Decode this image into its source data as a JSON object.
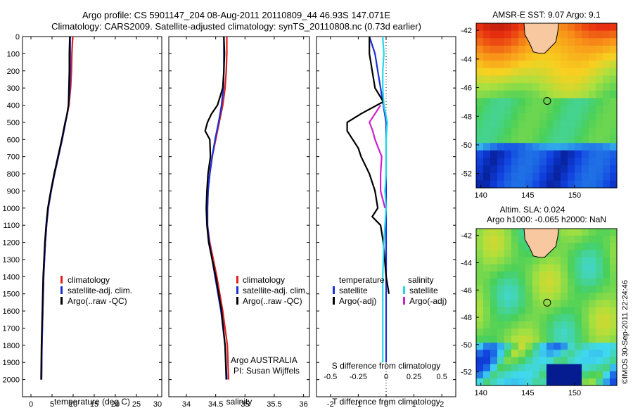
{
  "header": {
    "line1": "Argo profile: CS 5901147_204 08-Aug-2011 20110809_44 46.93S 147.071E",
    "line2": "Climatology: CARS2009. Satellite-adjusted climatology: synTS_20110808.nc (0.73d earlier)"
  },
  "credit": "©IMOS 30-Sep-2011 22:24:46",
  "colors": {
    "climatology": "#e02020",
    "satellite": "#1a2fd6",
    "argo": "#000000",
    "sal_satellite": "#22d8e8",
    "sal_argo": "#cc22cc"
  },
  "chart_data": [
    {
      "type": "line",
      "id": "temperature",
      "xlabel": "temperature (deg C)",
      "xlim": [
        -2,
        31
      ],
      "xticks": [
        0,
        5,
        10,
        15,
        20,
        25,
        30
      ],
      "ylim": [
        0,
        2100
      ],
      "yticks": [
        0,
        100,
        200,
        300,
        400,
        500,
        600,
        700,
        800,
        900,
        1000,
        1100,
        1200,
        1300,
        1400,
        1500,
        1600,
        1700,
        1800,
        1900,
        2000
      ],
      "legend": [
        "climatology",
        "satellite-adj. clim.",
        "Argo(..raw -QC)"
      ],
      "series": [
        {
          "name": "climatology",
          "color": "#e02020",
          "depth": [
            0,
            100,
            200,
            300,
            400,
            500,
            600,
            700,
            800,
            900,
            1000,
            1100,
            1200,
            1400,
            1600,
            1800,
            2000
          ],
          "values": [
            9.9,
            9.7,
            9.6,
            9.4,
            9.0,
            8.2,
            7.4,
            6.5,
            5.6,
            4.8,
            4.1,
            3.7,
            3.4,
            3.0,
            2.8,
            2.6,
            2.5
          ]
        },
        {
          "name": "satellite-adj. clim.",
          "color": "#1a2fd6",
          "depth": [
            0,
            100,
            200,
            300,
            400,
            500,
            600,
            700,
            800,
            900,
            1000,
            1100,
            1200,
            1400,
            1600,
            1800,
            2000
          ],
          "values": [
            9.3,
            9.3,
            9.3,
            9.2,
            8.9,
            8.2,
            7.4,
            6.5,
            5.6,
            4.8,
            4.1,
            3.7,
            3.4,
            3.0,
            2.8,
            2.6,
            2.5
          ]
        },
        {
          "name": "Argo(..raw -QC)",
          "color": "#000000",
          "depth": [
            0,
            100,
            200,
            300,
            400,
            450,
            500,
            600,
            700,
            800,
            900,
            1000,
            1100,
            1200,
            1400,
            1600,
            1800,
            2000
          ],
          "values": [
            9.2,
            9.1,
            9.1,
            9.0,
            8.9,
            8.6,
            8.1,
            7.3,
            6.4,
            5.5,
            4.7,
            4.0,
            3.6,
            3.3,
            2.9,
            2.7,
            2.5,
            2.4
          ]
        }
      ]
    },
    {
      "type": "line",
      "id": "salinity",
      "xlabel": "salinity",
      "xlim": [
        33.7,
        36.1
      ],
      "xticks": [
        34,
        34.5,
        35,
        35.5,
        36
      ],
      "ylim": [
        0,
        2100
      ],
      "legend": [
        "climatology",
        "satellite-adj. clim.",
        "Argo(..raw -QC)"
      ],
      "annotation": [
        "Argo AUSTRALIA",
        "PI: Susan Wijffels"
      ],
      "series": [
        {
          "name": "climatology",
          "color": "#e02020",
          "depth": [
            0,
            100,
            200,
            300,
            400,
            500,
            600,
            700,
            800,
            900,
            1000,
            1100,
            1200,
            1400,
            1600,
            1800,
            2000
          ],
          "values": [
            34.69,
            34.69,
            34.68,
            34.66,
            34.62,
            34.56,
            34.5,
            34.44,
            34.4,
            34.37,
            34.36,
            34.36,
            34.4,
            34.52,
            34.62,
            34.7,
            34.72
          ]
        },
        {
          "name": "satellite-adj. clim.",
          "color": "#1a2fd6",
          "depth": [
            0,
            100,
            200,
            300,
            400,
            500,
            600,
            700,
            800,
            900,
            1000,
            1100,
            1200,
            1400,
            1600,
            1800,
            2000
          ],
          "values": [
            34.64,
            34.64,
            34.64,
            34.63,
            34.6,
            34.55,
            34.49,
            34.44,
            34.4,
            34.37,
            34.36,
            34.36,
            34.39,
            34.49,
            34.59,
            34.66,
            34.69
          ]
        },
        {
          "name": "Argo(..raw -QC)",
          "color": "#000000",
          "depth": [
            0,
            100,
            200,
            300,
            400,
            450,
            500,
            550,
            600,
            700,
            800,
            900,
            1000,
            1100,
            1200,
            1400,
            1600,
            1800,
            2000
          ],
          "values": [
            34.64,
            34.65,
            34.64,
            34.62,
            34.53,
            34.43,
            34.36,
            34.32,
            34.4,
            34.41,
            34.37,
            34.35,
            34.34,
            34.35,
            34.38,
            34.5,
            34.6,
            34.66,
            34.68
          ]
        }
      ]
    },
    {
      "type": "line",
      "id": "difference",
      "xlabel": "T difference from climatology",
      "xlabel_top": "S difference from climatology",
      "xlim": [
        -2.5,
        2.5
      ],
      "xticks": [
        -2,
        -1,
        0,
        1,
        2
      ],
      "sticks": [
        -0.5,
        -0.25,
        0,
        0.25,
        0.5
      ],
      "slim": [
        -0.625,
        0.625
      ],
      "ylim": [
        0,
        2100
      ],
      "legend_t_title": "temperature",
      "legend_s_title": "salinity",
      "legend": [
        "satellite",
        "Argo(-adj)",
        "satellite",
        "Argo(-adj)"
      ],
      "series": [
        {
          "name": "satellite",
          "axis": "T",
          "color": "#1a2fd6",
          "depth": [
            0,
            100,
            200,
            300,
            400,
            500,
            700,
            900,
            1100,
            1300,
            1500,
            1700,
            1900
          ],
          "values": [
            -0.6,
            -0.4,
            -0.3,
            -0.2,
            -0.1,
            0.0,
            0.0,
            0.0,
            0.0,
            0.0,
            0.0,
            0.0,
            0.0
          ]
        },
        {
          "name": "Argo(-adj)",
          "axis": "T",
          "color": "#000000",
          "depth": [
            0,
            100,
            200,
            300,
            380,
            450,
            500,
            550,
            600,
            650,
            700,
            800,
            900,
            1000,
            1050,
            1100,
            1200,
            1400,
            1500
          ],
          "values": [
            -0.6,
            -0.6,
            -0.5,
            -0.4,
            -0.1,
            -0.9,
            -1.4,
            -1.4,
            -1.2,
            -1.0,
            -0.9,
            -0.6,
            -0.4,
            -0.3,
            -0.5,
            -0.2,
            -0.1,
            0.0,
            0.1
          ]
        },
        {
          "name": "satellite",
          "axis": "S",
          "color": "#22d8e8",
          "depth": [
            0,
            100,
            200,
            300,
            400,
            500,
            600,
            700,
            800,
            900,
            1000,
            1200,
            1400,
            1600,
            1800,
            1900
          ],
          "values": [
            -0.03,
            -0.02,
            -0.03,
            -0.03,
            -0.02,
            0.01,
            0.0,
            0.0,
            0.0,
            -0.01,
            0.0,
            -0.02,
            -0.03,
            -0.03,
            -0.03,
            -0.03
          ]
        },
        {
          "name": "Argo(-adj)",
          "axis": "S",
          "color": "#cc22cc",
          "depth": [
            400,
            450,
            500,
            550,
            600,
            700,
            800,
            900,
            1000
          ],
          "values": [
            -0.05,
            -0.1,
            -0.15,
            -0.12,
            -0.1,
            -0.04,
            -0.05,
            -0.05,
            -0.01
          ]
        }
      ]
    },
    {
      "type": "heatmap",
      "id": "sst-map",
      "title": "AMSR-E SST: 9.07 Argo: 9.1",
      "xlim": [
        139.5,
        154.5
      ],
      "ylim": [
        -53,
        -41.5
      ],
      "xticks": [
        140,
        145,
        150
      ],
      "yticks": [
        -42,
        -44,
        -46,
        -48,
        -50,
        -52
      ],
      "marker": {
        "lon": 147.07,
        "lat": -46.93
      }
    },
    {
      "type": "heatmap",
      "id": "sla-map",
      "title_line1": "Altim. SLA: 0.024",
      "title_line2": "Argo h1000: -0.065 h2000: NaN",
      "xlim": [
        139.5,
        154.5
      ],
      "ylim": [
        -53,
        -41.5
      ],
      "xticks": [
        140,
        145,
        150
      ],
      "yticks": [
        -42,
        -44,
        -46,
        -48,
        -50,
        -52
      ],
      "marker": {
        "lon": 147.07,
        "lat": -46.93
      }
    }
  ]
}
